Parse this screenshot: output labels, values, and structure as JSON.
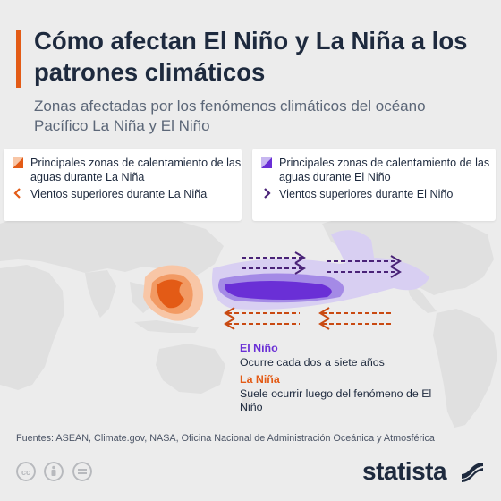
{
  "header": {
    "title": "Cómo afectan El Niño y La Niña a los patrones climáticos",
    "subtitle": "Zonas afectadas por los fenómenos climáticos del océano Pacífico La Niña y El Niño"
  },
  "legend": {
    "la_nina": {
      "warming_label": "Principales zonas de calentamiento de las aguas durante La Niña",
      "winds_label": "Vientos superiores durante La Niña",
      "color": "#e35b16"
    },
    "el_nino": {
      "warming_label": "Principales zonas de calentamiento de las aguas durante El Niño",
      "winds_label": "Vientos superiores durante El Niño",
      "color": "#6a2fd6"
    }
  },
  "annotations": {
    "el_nino": {
      "title": "El Niño",
      "text": "Ocurre cada dos a siete años",
      "color": "#6a2fd6"
    },
    "la_nina": {
      "title": "La Niña",
      "text": "Suele ocurrir luego del fenómeno de El Niño",
      "color": "#e35b16"
    }
  },
  "footer": {
    "sources": "Fuentes: ASEAN, Climate.gov, NASA, Oficina Nacional de Administración Oceánica y Atmosférica",
    "license_icons": [
      "cc-icon",
      "attribution-icon",
      "no-derivatives-icon"
    ],
    "brand": "statista"
  }
}
